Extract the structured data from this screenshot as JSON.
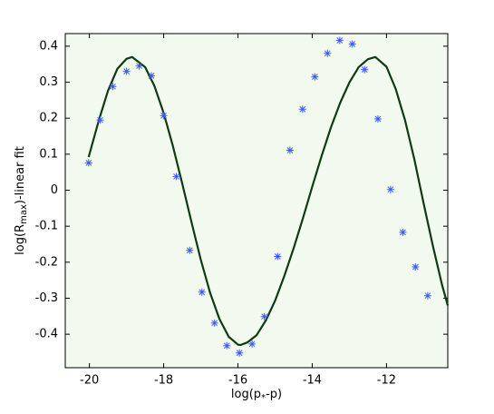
{
  "chart_data": {
    "type": "scatter+line",
    "x_label": {
      "main": "log(p",
      "sub": "*",
      "end": "-p)"
    },
    "y_label": {
      "main": "log(R",
      "sub": "max",
      "end": ")-linear fit"
    },
    "xlim": [
      -20.65,
      -10.35
    ],
    "ylim": [
      -0.493,
      0.435
    ],
    "xticks": [
      -20,
      -18,
      -16,
      -14,
      -12
    ],
    "yticks": [
      -0.4,
      -0.3,
      -0.2,
      -0.1,
      0,
      0.1,
      0.2,
      0.3,
      0.4
    ],
    "background": "#f2f9ee",
    "points": {
      "color": "#3a5cf0",
      "x": [
        -20.02,
        -19.71,
        -19.37,
        -19.0,
        -18.66,
        -18.33,
        -18.0,
        -17.66,
        -17.3,
        -16.97,
        -16.63,
        -16.3,
        -15.96,
        -15.62,
        -15.29,
        -14.93,
        -14.6,
        -14.26,
        -13.93,
        -13.59,
        -13.26,
        -12.92,
        -12.59,
        -12.23,
        -11.89,
        -11.56,
        -11.22,
        -10.89
      ],
      "values": [
        0.076,
        0.195,
        0.288,
        0.33,
        0.345,
        0.318,
        0.207,
        0.038,
        -0.167,
        -0.283,
        -0.369,
        -0.432,
        -0.452,
        -0.427,
        -0.351,
        -0.184,
        0.111,
        0.225,
        0.315,
        0.38,
        0.416,
        0.406,
        0.335,
        0.198,
        0.002,
        -0.117,
        -0.213,
        -0.293
      ]
    },
    "fit": {
      "color": "#0f3a14",
      "x": [
        -20.02,
        -19.75,
        -19.5,
        -19.25,
        -19,
        -18.85,
        -18.5,
        -18.25,
        -18,
        -17.75,
        -17.5,
        -17.25,
        -17,
        -16.75,
        -16.5,
        -16.25,
        -16,
        -15.93,
        -15.75,
        -15.5,
        -15.25,
        -15,
        -14.75,
        -14.5,
        -14.25,
        -14,
        -13.75,
        -13.5,
        -13.25,
        -13,
        -12.75,
        -12.5,
        -12.3,
        -12,
        -11.75,
        -11.5,
        -11.25,
        -11,
        -10.75,
        -10.5,
        -10.35
      ],
      "values": [
        0.092,
        0.193,
        0.276,
        0.337,
        0.365,
        0.37,
        0.342,
        0.29,
        0.214,
        0.122,
        0.018,
        -0.089,
        -0.193,
        -0.285,
        -0.357,
        -0.407,
        -0.429,
        -0.43,
        -0.423,
        -0.403,
        -0.362,
        -0.307,
        -0.238,
        -0.161,
        -0.078,
        0.01,
        0.094,
        0.173,
        0.242,
        0.299,
        0.342,
        0.364,
        0.37,
        0.343,
        0.281,
        0.194,
        0.086,
        -0.037,
        -0.155,
        -0.265,
        -0.32
      ]
    }
  }
}
